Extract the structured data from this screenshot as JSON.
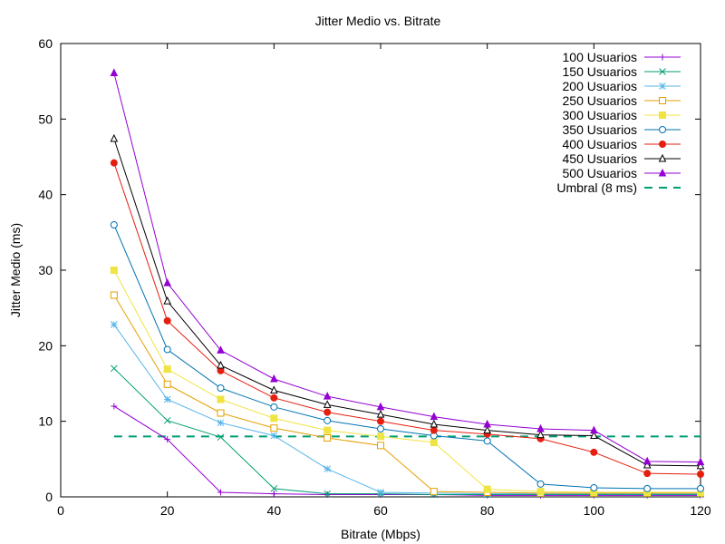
{
  "chart_data": {
    "type": "line",
    "title": "Jitter Medio vs. Bitrate",
    "xlabel": "Bitrate (Mbps)",
    "ylabel": "Jitter Medio (ms)",
    "xlim": [
      0,
      120
    ],
    "ylim": [
      0,
      60
    ],
    "xticks": [
      0,
      20,
      40,
      60,
      80,
      100,
      120
    ],
    "yticks": [
      0,
      10,
      20,
      30,
      40,
      50,
      60
    ],
    "grid": false,
    "legend_position": "top-right",
    "x": [
      10,
      20,
      30,
      40,
      50,
      60,
      70,
      80,
      90,
      100,
      110,
      120
    ],
    "series": [
      {
        "name": "100 Usuarios",
        "color": "#9400D3",
        "marker": "plus",
        "values": [
          12.0,
          7.6,
          0.6,
          0.4,
          0.3,
          0.3,
          0.3,
          0.2,
          0.2,
          0.2,
          0.2,
          0.2
        ]
      },
      {
        "name": "150 Usuarios",
        "color": "#009E73",
        "marker": "cross",
        "values": [
          17.0,
          10.1,
          7.9,
          1.1,
          0.4,
          0.4,
          0.3,
          0.3,
          0.3,
          0.3,
          0.3,
          0.3
        ]
      },
      {
        "name": "200 Usuarios",
        "color": "#56B4E9",
        "marker": "star",
        "values": [
          22.8,
          12.9,
          9.8,
          8.1,
          3.7,
          0.6,
          0.5,
          0.4,
          0.4,
          0.4,
          0.4,
          0.4
        ]
      },
      {
        "name": "250 Usuarios",
        "color": "#E69F00",
        "marker": "square-open",
        "values": [
          26.7,
          14.9,
          11.1,
          9.1,
          7.8,
          6.8,
          0.7,
          0.6,
          0.5,
          0.5,
          0.5,
          0.5
        ]
      },
      {
        "name": "300 Usuarios",
        "color": "#F0E442",
        "marker": "square-filled",
        "values": [
          30.0,
          16.9,
          12.9,
          10.4,
          8.8,
          8.0,
          7.2,
          1.0,
          0.7,
          0.6,
          0.6,
          0.6
        ]
      },
      {
        "name": "350 Usuarios",
        "color": "#0072B2",
        "marker": "circle-open",
        "values": [
          36.0,
          19.5,
          14.4,
          11.9,
          10.1,
          9.0,
          8.1,
          7.4,
          1.7,
          1.2,
          1.1,
          1.1
        ]
      },
      {
        "name": "400 Usuarios",
        "color": "#E51E10",
        "marker": "circle-filled",
        "values": [
          44.2,
          23.3,
          16.7,
          13.1,
          11.2,
          10.0,
          8.8,
          8.3,
          7.7,
          5.9,
          3.1,
          3.0
        ]
      },
      {
        "name": "450 Usuarios",
        "color": "#000000",
        "marker": "triangle-open",
        "values": [
          47.4,
          25.9,
          17.4,
          14.1,
          12.2,
          10.9,
          9.6,
          8.8,
          8.2,
          8.1,
          4.2,
          4.1
        ]
      },
      {
        "name": "500 Usuarios",
        "color": "#9400D3",
        "marker": "triangle-filled",
        "values": [
          56.1,
          28.3,
          19.4,
          15.6,
          13.3,
          11.9,
          10.6,
          9.6,
          9.0,
          8.8,
          4.7,
          4.6
        ]
      }
    ],
    "threshold": {
      "name": "Umbral (8 ms)",
      "value": 8,
      "x_range": [
        10,
        120
      ],
      "color": "#009E73",
      "style": "dashed"
    }
  }
}
